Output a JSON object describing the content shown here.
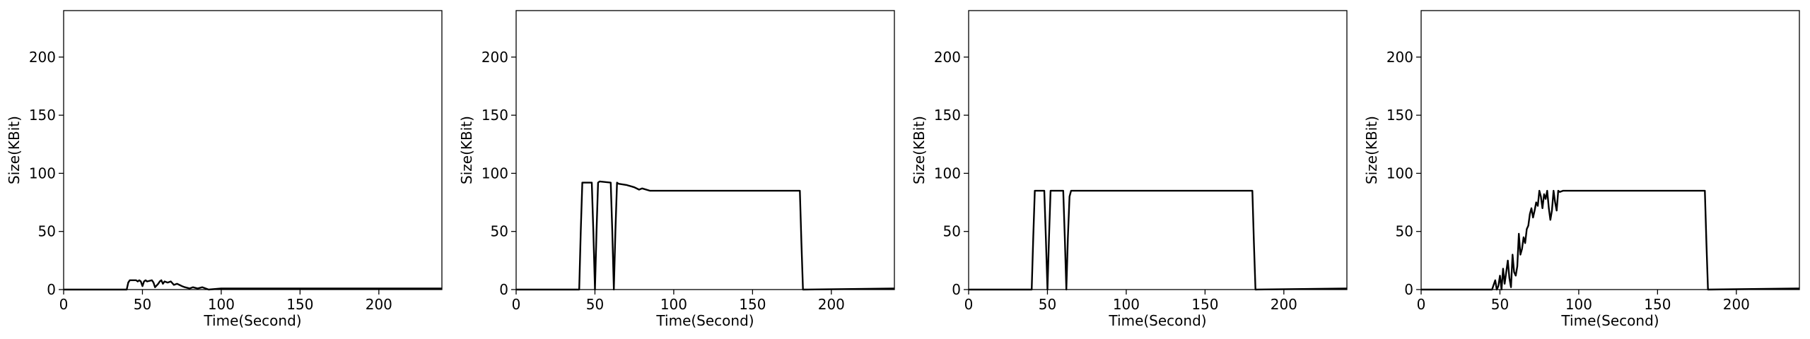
{
  "chart_data": [
    {
      "type": "line",
      "xlabel": "Time(Second)",
      "ylabel": "Size(KBit)",
      "xlim": [
        0,
        240
      ],
      "ylim": [
        0,
        240
      ],
      "xticks": [
        0,
        50,
        100,
        150,
        200
      ],
      "yticks": [
        0,
        50,
        100,
        150,
        200
      ],
      "grid": false,
      "series": [
        {
          "x": [
            0,
            40,
            41,
            42,
            46,
            47,
            48,
            49,
            50,
            51,
            52,
            53,
            56,
            57,
            58,
            60,
            61,
            62,
            63,
            64,
            66,
            68,
            70,
            72,
            75,
            77,
            80,
            82,
            85,
            88,
            92,
            100,
            240
          ],
          "y": [
            0,
            0,
            6,
            8,
            8,
            7,
            8,
            7,
            3,
            7,
            8,
            7,
            8,
            6,
            2,
            5,
            7,
            8,
            5,
            7,
            6,
            7,
            4,
            5,
            3,
            2,
            1,
            2,
            1,
            2,
            0,
            1,
            1
          ]
        }
      ]
    },
    {
      "type": "line",
      "xlabel": "Time(Second)",
      "ylabel": "Size(KBit)",
      "xlim": [
        0,
        240
      ],
      "ylim": [
        0,
        240
      ],
      "xticks": [
        0,
        50,
        100,
        150,
        200
      ],
      "yticks": [
        0,
        50,
        100,
        150,
        200
      ],
      "grid": false,
      "series": [
        {
          "x": [
            0,
            40,
            41,
            42,
            48,
            49,
            50,
            51,
            52,
            53,
            60,
            61,
            62,
            63,
            64,
            65,
            70,
            75,
            78,
            80,
            85,
            90,
            100,
            120,
            140,
            160,
            180,
            181,
            182,
            240
          ],
          "y": [
            0,
            0,
            50,
            92,
            92,
            50,
            0,
            50,
            92,
            93,
            92,
            50,
            0,
            50,
            92,
            91,
            90,
            88,
            86,
            87,
            85,
            85,
            85,
            85,
            85,
            85,
            85,
            40,
            0,
            1
          ]
        }
      ]
    },
    {
      "type": "line",
      "xlabel": "Time(Second)",
      "ylabel": "Size(KBit)",
      "xlim": [
        0,
        240
      ],
      "ylim": [
        0,
        240
      ],
      "xticks": [
        0,
        50,
        100,
        150,
        200
      ],
      "yticks": [
        0,
        50,
        100,
        150,
        200
      ],
      "grid": false,
      "series": [
        {
          "x": [
            0,
            40,
            41,
            42,
            48,
            49,
            50,
            51,
            52,
            53,
            60,
            61,
            62,
            63,
            64,
            65,
            70,
            100,
            140,
            180,
            181,
            182,
            240
          ],
          "y": [
            0,
            0,
            45,
            85,
            85,
            45,
            0,
            45,
            85,
            85,
            85,
            45,
            0,
            45,
            80,
            85,
            85,
            85,
            85,
            85,
            40,
            0,
            1
          ]
        }
      ]
    },
    {
      "type": "line",
      "xlabel": "Time(Second)",
      "ylabel": "Size(KBit)",
      "xlim": [
        0,
        240
      ],
      "ylim": [
        0,
        240
      ],
      "xticks": [
        0,
        50,
        100,
        150,
        200
      ],
      "yticks": [
        0,
        50,
        100,
        150,
        200
      ],
      "grid": false,
      "series": [
        {
          "x": [
            0,
            45,
            47,
            48,
            49,
            50,
            51,
            52,
            53,
            55,
            56,
            57,
            58,
            59,
            60,
            61,
            62,
            63,
            64,
            65,
            66,
            67,
            68,
            69,
            70,
            71,
            72,
            73,
            74,
            75,
            76,
            77,
            78,
            79,
            80,
            81,
            82,
            83,
            84,
            85,
            86,
            87,
            88,
            90,
            92,
            100,
            120,
            140,
            160,
            180,
            181,
            182,
            240
          ],
          "y": [
            0,
            0,
            8,
            0,
            3,
            12,
            0,
            18,
            5,
            25,
            10,
            2,
            30,
            15,
            12,
            20,
            48,
            30,
            35,
            45,
            40,
            52,
            55,
            65,
            70,
            62,
            68,
            75,
            72,
            85,
            80,
            70,
            82,
            78,
            85,
            70,
            60,
            68,
            85,
            75,
            68,
            85,
            84,
            85,
            85,
            85,
            85,
            85,
            85,
            85,
            40,
            0,
            1
          ]
        }
      ]
    }
  ]
}
